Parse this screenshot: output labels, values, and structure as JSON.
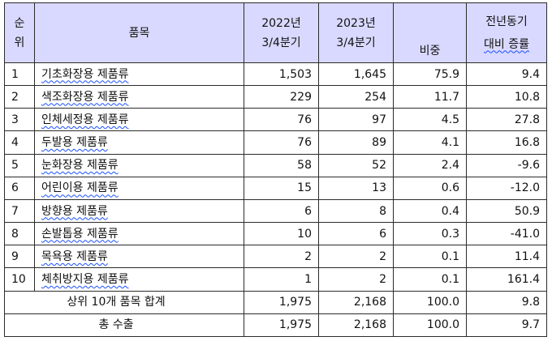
{
  "table": {
    "headers": {
      "rank": [
        "순",
        "위"
      ],
      "item": "품목",
      "y2022": [
        "2022년",
        "3/4분기"
      ],
      "y2023": [
        "2023년",
        "3/4분기"
      ],
      "share": "비중",
      "yoy": [
        "전년동기",
        "대비 증률"
      ]
    },
    "rows": [
      {
        "rank": "1",
        "item": "기초화장용 제품류",
        "y2022": "1,503",
        "y2023": "1,645",
        "share": "75.9",
        "yoy": "9.4"
      },
      {
        "rank": "2",
        "item": "색조화장용 제품류",
        "y2022": "229",
        "y2023": "254",
        "share": "11.7",
        "yoy": "10.8"
      },
      {
        "rank": "3",
        "item": "인체세정용 제품류",
        "y2022": "76",
        "y2023": "97",
        "share": "4.5",
        "yoy": "27.8"
      },
      {
        "rank": "4",
        "item": "두발용 제품류",
        "y2022": "76",
        "y2023": "89",
        "share": "4.1",
        "yoy": "16.8"
      },
      {
        "rank": "5",
        "item": "눈화장용 제품류",
        "y2022": "58",
        "y2023": "52",
        "share": "2.4",
        "yoy": "-9.6"
      },
      {
        "rank": "6",
        "item": "어린이용 제품류",
        "y2022": "15",
        "y2023": "13",
        "share": "0.6",
        "yoy": "-12.0"
      },
      {
        "rank": "7",
        "item": "방향용 제품류",
        "y2022": "6",
        "y2023": "8",
        "share": "0.4",
        "yoy": "50.9"
      },
      {
        "rank": "8",
        "item": "손발톱용 제품류",
        "y2022": "10",
        "y2023": "6",
        "share": "0.3",
        "yoy": "-41.0"
      },
      {
        "rank": "9",
        "item": "목욕용 제품류",
        "y2022": "2",
        "y2023": "2",
        "share": "0.1",
        "yoy": "11.4"
      },
      {
        "rank": "10",
        "item": "체취방지용 제품류",
        "y2022": "1",
        "y2023": "2",
        "share": "0.1",
        "yoy": "161.4"
      }
    ],
    "summary": [
      {
        "label": "상위 10개 품목 합계",
        "y2022": "1,975",
        "y2023": "2,168",
        "share": "100.0",
        "yoy": "9.8"
      },
      {
        "label": "총 수출",
        "y2022": "1,975",
        "y2023": "2,168",
        "share": "100.0",
        "yoy": "9.7"
      }
    ]
  }
}
